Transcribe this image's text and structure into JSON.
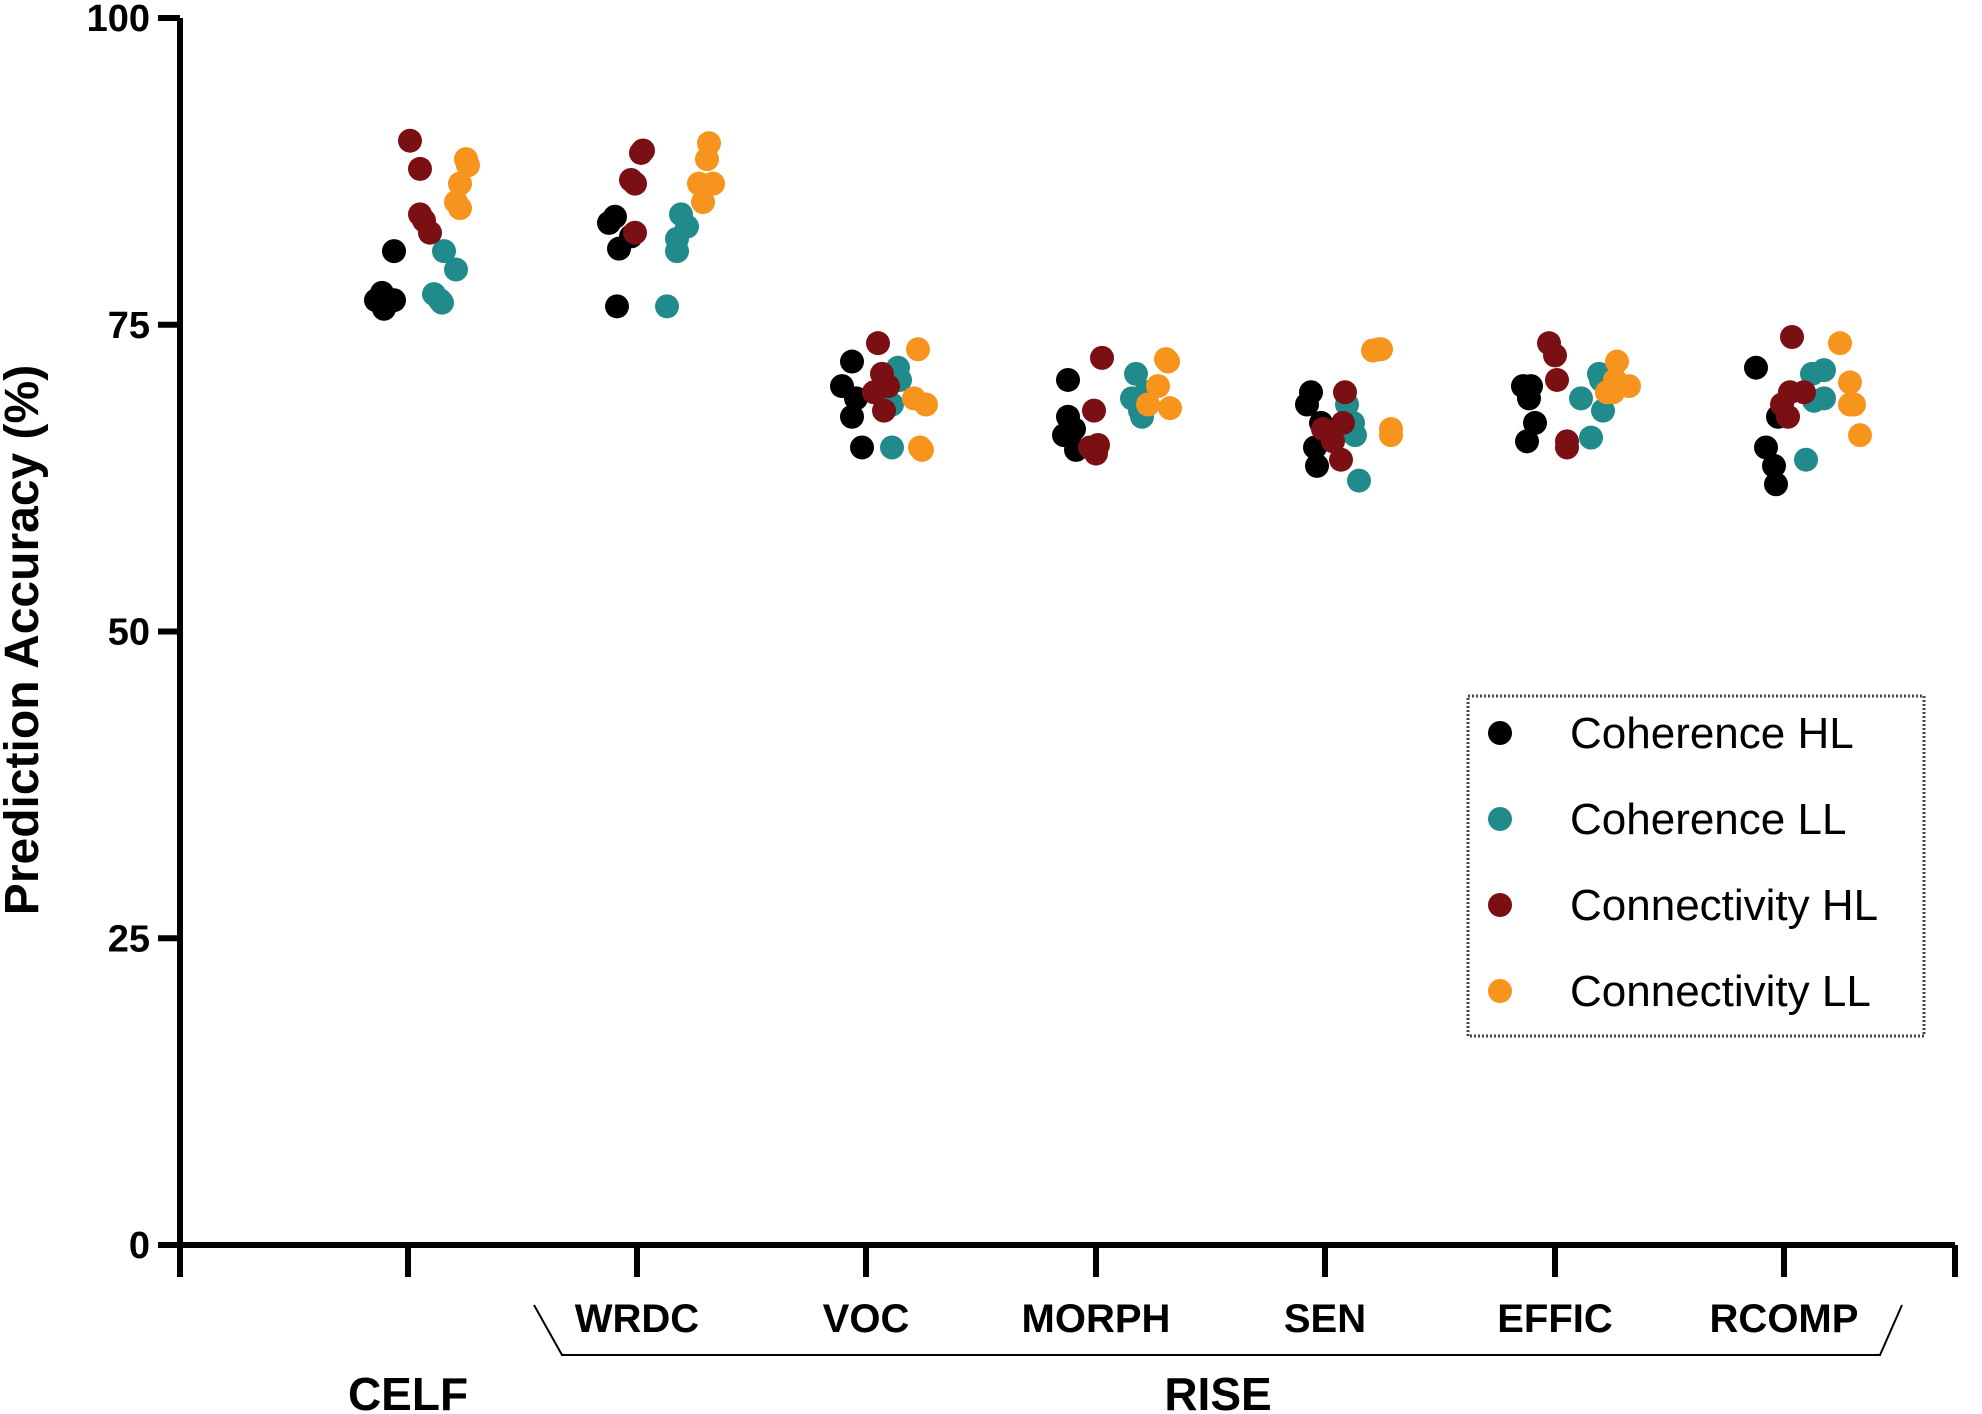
{
  "chart_data": {
    "type": "scatter",
    "title": "",
    "xlabel": "",
    "ylabel": "Prediction Accuracy (%)",
    "ylim": [
      0,
      100
    ],
    "yticks": [
      0,
      25,
      50,
      75,
      100
    ],
    "grid": false,
    "legend_position": "right",
    "categories": [
      "CELF",
      "WRDC",
      "VOC",
      "MORPH",
      "SEN",
      "EFFIC",
      "RCOMP"
    ],
    "category_labels": [
      "",
      "WRDC",
      "VOC",
      "MORPH",
      "SEN",
      "EFFIC",
      "RCOMP"
    ],
    "groups": [
      {
        "label": "CELF",
        "categories": [
          "CELF"
        ]
      },
      {
        "label": "RISE",
        "categories": [
          "WRDC",
          "VOC",
          "MORPH",
          "SEN",
          "EFFIC",
          "RCOMP"
        ]
      }
    ],
    "series": [
      {
        "name": "Coherence HL",
        "color": "#000000",
        "values": [
          [
            77.0,
            77.6,
            76.3,
            77.0,
            81.0
          ],
          [
            81.2,
            82.2,
            83.3,
            83.8,
            76.5
          ],
          [
            70.0,
            72.0,
            67.5,
            65.0,
            69.0
          ],
          [
            70.5,
            66.5,
            64.8,
            67.5,
            66.0
          ],
          [
            69.5,
            67.0,
            65.0,
            63.5,
            68.5
          ],
          [
            67.0,
            65.5,
            70.0,
            69.0,
            70.0
          ],
          [
            63.5,
            62.0,
            65.0,
            67.5,
            71.5
          ]
        ]
      },
      {
        "name": "Coherence LL",
        "color": "#218a8a",
        "values": [
          [
            81.0,
            79.5,
            77.5,
            77.0,
            76.8
          ],
          [
            76.5,
            82.0,
            81.0,
            83.0,
            84.0
          ],
          [
            65.0,
            71.5,
            70.5,
            68.5,
            70.0
          ],
          [
            71.0,
            69.5,
            68.0,
            67.5,
            69.0
          ],
          [
            62.3,
            66.5,
            68.5,
            67.0,
            66.0
          ],
          [
            71.0,
            70.5,
            65.8,
            68.0,
            69.0
          ],
          [
            64.0,
            71.0,
            68.8,
            71.3,
            69.0
          ]
        ]
      },
      {
        "name": "Connectivity HL",
        "color": "#7a0f14",
        "values": [
          [
            90.0,
            87.7,
            84.0,
            82.5,
            83.5
          ],
          [
            86.5,
            89.0,
            89.2,
            82.5,
            86.8
          ],
          [
            73.5,
            70.0,
            71.0,
            68.0,
            69.5
          ],
          [
            72.3,
            68.0,
            65.0,
            64.5,
            65.2
          ],
          [
            64.0,
            67.0,
            65.5,
            69.5,
            66.5
          ],
          [
            73.5,
            72.5,
            70.5,
            65.0,
            65.5
          ],
          [
            74.0,
            69.5,
            68.5,
            67.5,
            69.5
          ]
        ]
      },
      {
        "name": "Connectivity LL",
        "color": "#f7941d",
        "values": [
          [
            84.5,
            88.5,
            88.0,
            86.5,
            85.0
          ],
          [
            85.0,
            86.5,
            88.5,
            89.8,
            86.5
          ],
          [
            68.5,
            73.0,
            69.0,
            65.0,
            64.8
          ],
          [
            72.2,
            72.0,
            70.0,
            68.2,
            68.5
          ],
          [
            72.9,
            73.0,
            73.0,
            66.5,
            66.0
          ],
          [
            72.0,
            70.0,
            69.5,
            69.5,
            70.5
          ],
          [
            73.5,
            70.3,
            68.5,
            66.0,
            68.5
          ]
        ]
      }
    ]
  }
}
